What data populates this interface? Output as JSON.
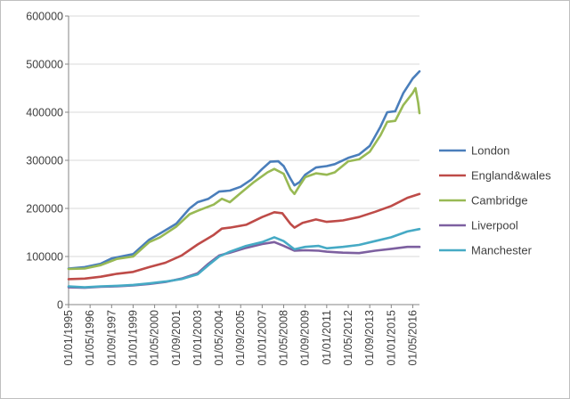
{
  "chart_data": {
    "type": "line",
    "title": "",
    "xlabel": "",
    "ylabel": "",
    "ylim": [
      0,
      600000
    ],
    "y_ticks": [
      0,
      100000,
      200000,
      300000,
      400000,
      500000,
      600000
    ],
    "y_tick_labels": [
      "0",
      "100000",
      "200000",
      "300000",
      "400000",
      "500000",
      "600000"
    ],
    "x_range": [
      1995.0,
      2016.75
    ],
    "x_tick_labels": [
      "01/01/1995",
      "01/05/1996",
      "01/09/1997",
      "01/01/1999",
      "01/05/2000",
      "01/09/2001",
      "01/01/2003",
      "01/05/2004",
      "01/09/2005",
      "01/01/2007",
      "01/05/2008",
      "01/09/2009",
      "01/01/2011",
      "01/05/2012",
      "01/09/2013",
      "01/01/2015",
      "01/05/2016"
    ],
    "x_tick_values": [
      1995.0,
      1996.333,
      1997.667,
      1999.0,
      2000.333,
      2001.667,
      2003.0,
      2004.333,
      2005.667,
      2007.0,
      2008.333,
      2009.667,
      2011.0,
      2012.333,
      2013.667,
      2015.0,
      2016.333
    ],
    "grid": "horizontal-major",
    "legend_position": "right",
    "series": [
      {
        "name": "London",
        "color": "#4a7ebb",
        "points": [
          [
            1995.0,
            75000
          ],
          [
            1996.0,
            78000
          ],
          [
            1997.0,
            85000
          ],
          [
            1997.667,
            96000
          ],
          [
            1999.0,
            105000
          ],
          [
            2000.0,
            135000
          ],
          [
            2000.667,
            148000
          ],
          [
            2001.667,
            168000
          ],
          [
            2002.5,
            200000
          ],
          [
            2003.0,
            213000
          ],
          [
            2003.667,
            220000
          ],
          [
            2004.333,
            235000
          ],
          [
            2005.0,
            237000
          ],
          [
            2005.667,
            245000
          ],
          [
            2006.333,
            260000
          ],
          [
            2007.0,
            282000
          ],
          [
            2007.5,
            297000
          ],
          [
            2008.0,
            298000
          ],
          [
            2008.333,
            288000
          ],
          [
            2008.75,
            262000
          ],
          [
            2009.0,
            248000
          ],
          [
            2009.333,
            255000
          ],
          [
            2009.667,
            270000
          ],
          [
            2010.333,
            285000
          ],
          [
            2011.0,
            288000
          ],
          [
            2011.5,
            292000
          ],
          [
            2012.333,
            305000
          ],
          [
            2013.0,
            312000
          ],
          [
            2013.667,
            330000
          ],
          [
            2014.333,
            370000
          ],
          [
            2014.75,
            400000
          ],
          [
            2015.25,
            402000
          ],
          [
            2015.75,
            440000
          ],
          [
            2016.333,
            470000
          ],
          [
            2016.75,
            485000
          ]
        ]
      },
      {
        "name": "England&wales",
        "color": "#be4b48",
        "points": [
          [
            1995.0,
            53000
          ],
          [
            1996.0,
            54000
          ],
          [
            1997.0,
            58000
          ],
          [
            1998.0,
            64000
          ],
          [
            1999.0,
            68000
          ],
          [
            2000.0,
            78000
          ],
          [
            2001.0,
            87000
          ],
          [
            2002.0,
            102000
          ],
          [
            2003.0,
            125000
          ],
          [
            2004.0,
            145000
          ],
          [
            2004.5,
            158000
          ],
          [
            2005.0,
            160000
          ],
          [
            2006.0,
            166000
          ],
          [
            2007.0,
            182000
          ],
          [
            2007.75,
            192000
          ],
          [
            2008.25,
            190000
          ],
          [
            2008.75,
            168000
          ],
          [
            2009.0,
            160000
          ],
          [
            2009.5,
            170000
          ],
          [
            2010.333,
            177000
          ],
          [
            2011.0,
            172000
          ],
          [
            2012.0,
            175000
          ],
          [
            2013.0,
            182000
          ],
          [
            2014.0,
            193000
          ],
          [
            2015.0,
            205000
          ],
          [
            2016.0,
            222000
          ],
          [
            2016.75,
            230000
          ]
        ]
      },
      {
        "name": "Cambridge",
        "color": "#98b954",
        "points": [
          [
            1995.0,
            74000
          ],
          [
            1996.0,
            75000
          ],
          [
            1997.0,
            82000
          ],
          [
            1998.0,
            95000
          ],
          [
            1999.0,
            100000
          ],
          [
            2000.0,
            130000
          ],
          [
            2000.667,
            140000
          ],
          [
            2001.667,
            162000
          ],
          [
            2002.5,
            188000
          ],
          [
            2003.0,
            195000
          ],
          [
            2004.0,
            208000
          ],
          [
            2004.5,
            220000
          ],
          [
            2005.0,
            213000
          ],
          [
            2005.667,
            232000
          ],
          [
            2006.5,
            255000
          ],
          [
            2007.333,
            275000
          ],
          [
            2007.75,
            282000
          ],
          [
            2008.333,
            272000
          ],
          [
            2008.75,
            240000
          ],
          [
            2009.0,
            230000
          ],
          [
            2009.333,
            248000
          ],
          [
            2009.667,
            265000
          ],
          [
            2010.333,
            273000
          ],
          [
            2011.0,
            270000
          ],
          [
            2011.5,
            275000
          ],
          [
            2012.333,
            298000
          ],
          [
            2013.0,
            302000
          ],
          [
            2013.667,
            318000
          ],
          [
            2014.333,
            352000
          ],
          [
            2014.75,
            380000
          ],
          [
            2015.25,
            382000
          ],
          [
            2015.75,
            415000
          ],
          [
            2016.333,
            440000
          ],
          [
            2016.5,
            450000
          ],
          [
            2016.667,
            420000
          ],
          [
            2016.75,
            398000
          ]
        ]
      },
      {
        "name": "Liverpool",
        "color": "#7d60a0",
        "points": [
          [
            1995.0,
            36000
          ],
          [
            1996.0,
            35000
          ],
          [
            1997.0,
            37000
          ],
          [
            1998.0,
            38000
          ],
          [
            1999.0,
            40000
          ],
          [
            2000.0,
            43000
          ],
          [
            2001.0,
            47000
          ],
          [
            2002.0,
            54000
          ],
          [
            2003.0,
            65000
          ],
          [
            2003.667,
            85000
          ],
          [
            2004.333,
            102000
          ],
          [
            2005.0,
            108000
          ],
          [
            2006.0,
            118000
          ],
          [
            2007.0,
            126000
          ],
          [
            2007.75,
            130000
          ],
          [
            2008.333,
            122000
          ],
          [
            2009.0,
            112000
          ],
          [
            2009.667,
            113000
          ],
          [
            2010.5,
            112000
          ],
          [
            2011.0,
            110000
          ],
          [
            2012.0,
            108000
          ],
          [
            2013.0,
            107000
          ],
          [
            2014.0,
            112000
          ],
          [
            2015.0,
            116000
          ],
          [
            2016.0,
            120000
          ],
          [
            2016.75,
            120000
          ]
        ]
      },
      {
        "name": "Manchester",
        "color": "#46aac5",
        "points": [
          [
            1995.0,
            38000
          ],
          [
            1996.0,
            36000
          ],
          [
            1997.0,
            38000
          ],
          [
            1998.0,
            39000
          ],
          [
            1999.0,
            41000
          ],
          [
            2000.0,
            44000
          ],
          [
            2001.0,
            48000
          ],
          [
            2002.0,
            53000
          ],
          [
            2003.0,
            63000
          ],
          [
            2003.667,
            82000
          ],
          [
            2004.333,
            100000
          ],
          [
            2005.0,
            110000
          ],
          [
            2006.0,
            122000
          ],
          [
            2007.0,
            130000
          ],
          [
            2007.75,
            140000
          ],
          [
            2008.333,
            132000
          ],
          [
            2009.0,
            115000
          ],
          [
            2009.667,
            120000
          ],
          [
            2010.5,
            122000
          ],
          [
            2011.0,
            117000
          ],
          [
            2012.0,
            120000
          ],
          [
            2013.0,
            124000
          ],
          [
            2014.0,
            132000
          ],
          [
            2015.0,
            140000
          ],
          [
            2016.0,
            152000
          ],
          [
            2016.75,
            157000
          ]
        ]
      }
    ]
  }
}
